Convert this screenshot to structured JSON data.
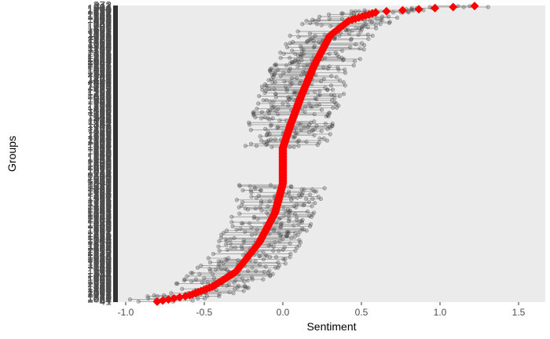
{
  "chart_data": {
    "type": "scatter",
    "title": "",
    "xlabel": "Sentiment",
    "ylabel": "Groups",
    "xlim": [
      -1.05,
      1.67
    ],
    "x_ticks": [
      -1.0,
      -0.5,
      0.0,
      0.5,
      1.0,
      1.5
    ],
    "x_tick_labels": [
      "-1.0",
      "-0.5",
      "0.0",
      "0.5",
      "1.0",
      "1.5"
    ],
    "grid": false,
    "legend": "none",
    "panel_background": "#ebebeb",
    "group_count": 280,
    "series": [
      {
        "kind": "group-mean",
        "marker": "diamond",
        "color": "#ff0000",
        "sentiment_quantiles": {
          "p": [
            0.0,
            0.02,
            0.05,
            0.1,
            0.2,
            0.3,
            0.4,
            0.45,
            0.5,
            0.52,
            0.6,
            0.7,
            0.8,
            0.9,
            0.95,
            0.98,
            0.995,
            1.0
          ],
          "values": [
            -0.8,
            -0.6,
            -0.45,
            -0.3,
            -0.15,
            -0.05,
            0.0,
            0.0,
            0.0,
            0.0,
            0.05,
            0.12,
            0.2,
            0.3,
            0.42,
            0.6,
            1.03,
            1.22
          ]
        }
      },
      {
        "kind": "individual-observations",
        "marker": "circle",
        "color": "#000000",
        "opacity": 0.2
      }
    ]
  }
}
